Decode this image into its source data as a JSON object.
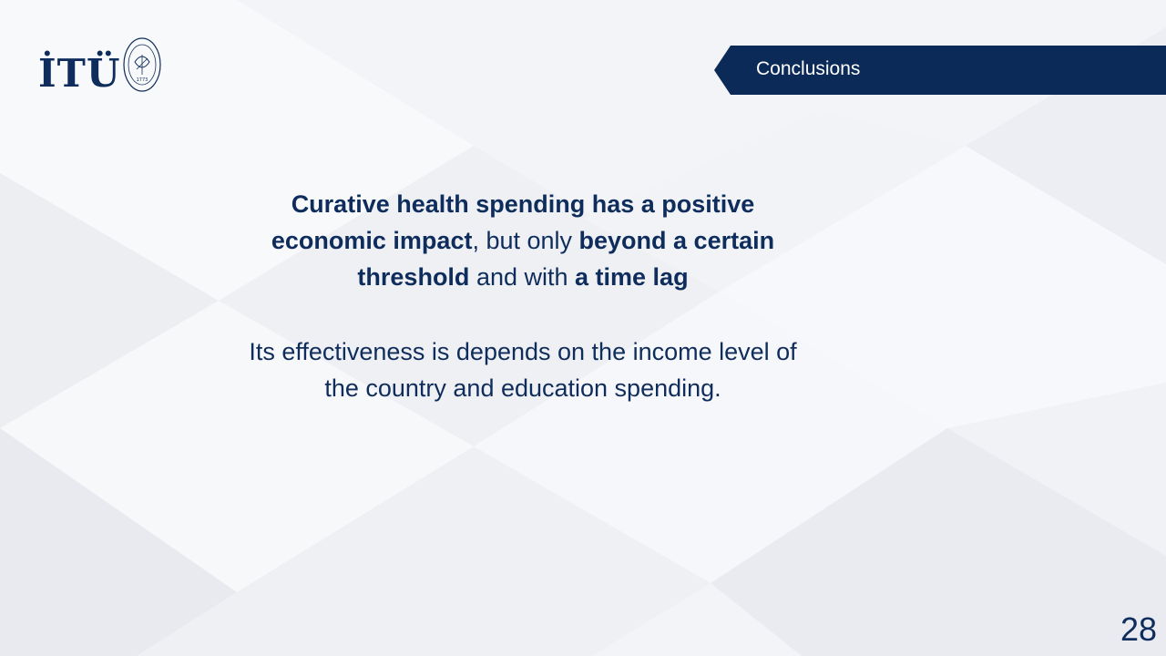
{
  "logo": {
    "text": "İTÜ",
    "seal_text": "İSTANBUL TEKNİK ÜNİVERSİTESİ",
    "seal_year": "1773"
  },
  "header": {
    "section_title": "Conclusions"
  },
  "main": {
    "p1": {
      "s1": "Curative health spending has a positive economic impact",
      "s2": ", but only ",
      "s3": "beyond a certain threshold",
      "s4": " and with ",
      "s5": "a time lag"
    },
    "p2": "Its effectiveness is depends on the income level of the country and education spending."
  },
  "footer": {
    "page_number": "28"
  },
  "colors": {
    "navy": "#0f2d5c",
    "tab": "#0b2a57",
    "background": "#f4f5f8"
  }
}
